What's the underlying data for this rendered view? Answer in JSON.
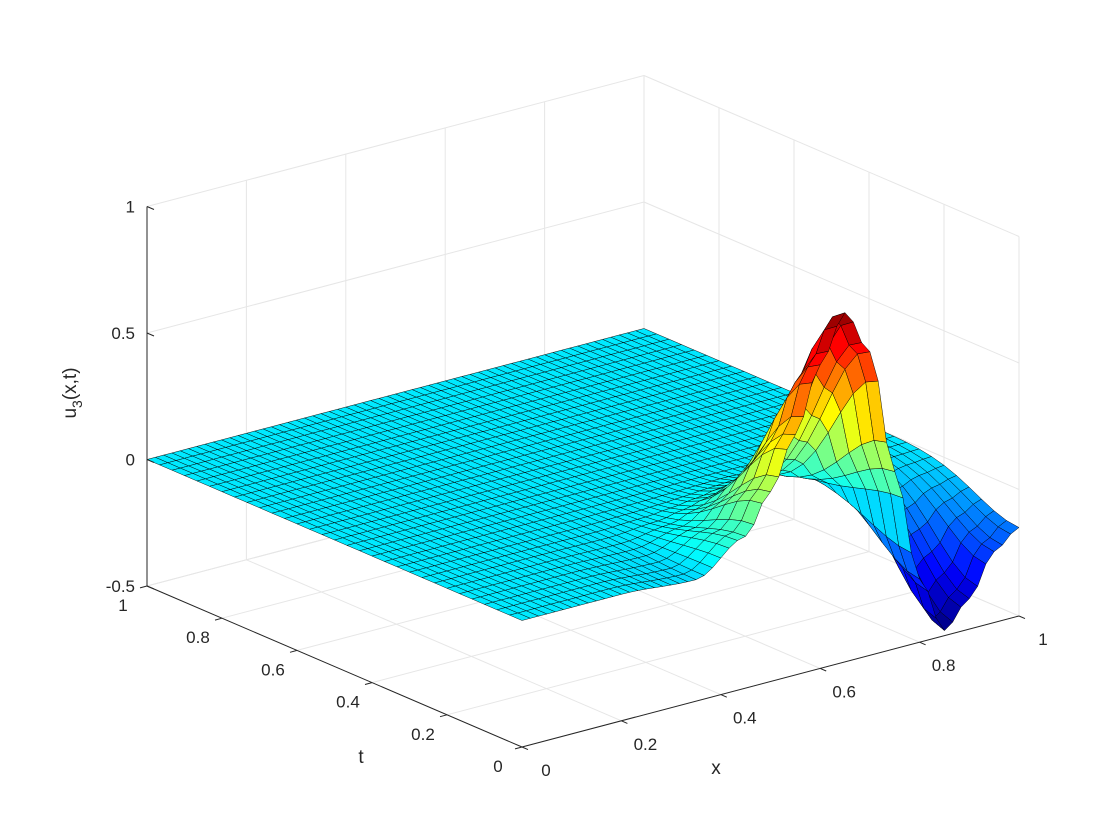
{
  "chart_data": {
    "type": "surface",
    "title": "",
    "xlabel": "x",
    "ylabel": "t",
    "zlabel_base": "u",
    "zlabel_sub": "3",
    "zlabel_rest": "(x,t)",
    "xlim": [
      0,
      1
    ],
    "ylim": [
      0,
      1
    ],
    "zlim": [
      -0.5,
      1
    ],
    "xticks": [
      0,
      0.2,
      0.4,
      0.6,
      0.8,
      1
    ],
    "xtick_labels": [
      "0",
      "0.2",
      "0.4",
      "0.6",
      "0.8",
      "1"
    ],
    "yticks": [
      0,
      0.2,
      0.4,
      0.6,
      0.8,
      1
    ],
    "ytick_labels": [
      "0",
      "0.2",
      "0.4",
      "0.6",
      "0.8",
      "1"
    ],
    "zticks": [
      -0.5,
      0,
      0.5,
      1
    ],
    "ztick_labels": [
      "-0.5",
      "0",
      "0.5",
      "1"
    ],
    "grid": true,
    "colormap": "jet",
    "mesh_edge_color": "#000000",
    "grid_x_samples": 61,
    "grid_t_samples": 31,
    "surface_profile_at_t0": {
      "x": [
        0,
        0.2,
        0.35,
        0.45,
        0.5,
        0.55,
        0.6,
        0.65,
        0.7,
        0.75,
        0.8,
        0.85,
        0.9,
        0.95,
        1
      ],
      "u": [
        0,
        0,
        -0.02,
        0.1,
        0.25,
        0.45,
        0.7,
        0.88,
        0.7,
        0.2,
        -0.25,
        -0.48,
        -0.38,
        -0.22,
        -0.15
      ]
    },
    "surface_note": "Surface is u3(x,t) = 0 for most of the domain; a localized wave (peak ≈ 0.88 near x≈0.65, trough ≈ -0.48 near x≈0.85) appears at small t and decays as t increases."
  }
}
